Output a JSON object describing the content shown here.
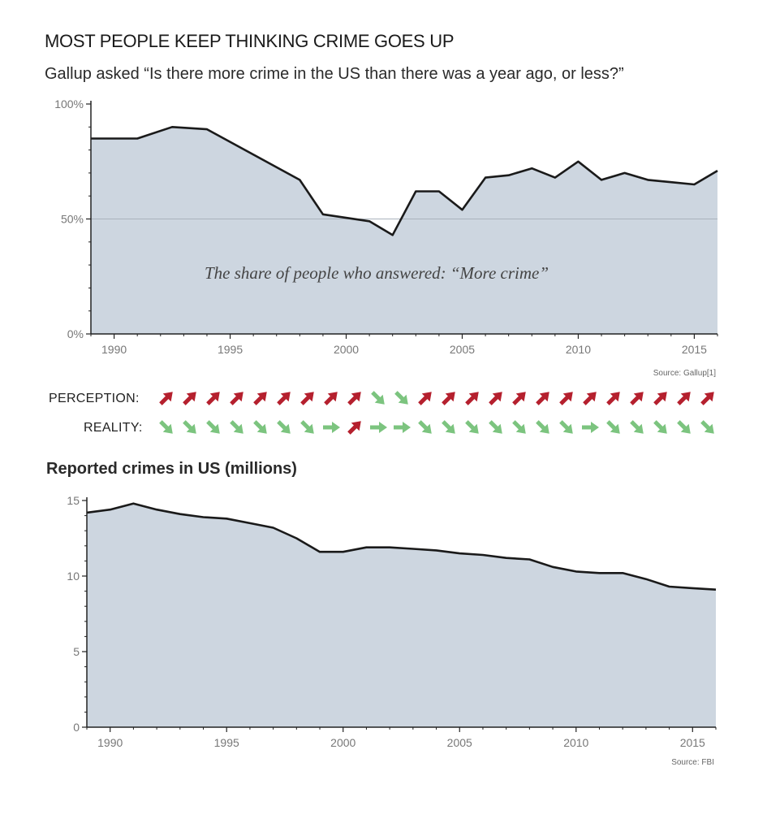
{
  "title": "MOST PEOPLE KEEP THINKING CRIME GOES UP",
  "subtitle": "Gallup asked “Is there more crime in the US than there was a year ago, or less?”",
  "colors": {
    "area_fill": "#cdd6e0",
    "line": "#1a1a1a",
    "up_arrow": "#b5202e",
    "down_arrow": "#7cc47f"
  },
  "chart_data": [
    {
      "type": "area",
      "annotation": "The share of people who answered: “More crime”",
      "source": "Source: Gallup[1]",
      "ylim": [
        0,
        100
      ],
      "yticks": [
        "0%",
        "50%",
        "100%"
      ],
      "xlim": [
        1989,
        2016
      ],
      "xticks": [
        "1990",
        "1995",
        "2000",
        "2005",
        "2010",
        "2015"
      ],
      "grid": "50% reference line",
      "series": [
        {
          "x": [
            1989,
            1991,
            1992.5,
            1994,
            1998,
            1999,
            2001,
            2002,
            2003,
            2004,
            2005,
            2006,
            2007,
            2008,
            2009,
            2010,
            2011,
            2012,
            2013,
            2014,
            2015,
            2016
          ],
          "y": [
            85,
            85,
            90,
            89,
            67,
            52,
            49,
            43,
            62,
            62,
            54,
            68,
            69,
            72,
            68,
            75,
            67,
            70,
            67,
            66,
            65,
            71
          ]
        }
      ]
    },
    {
      "type": "area",
      "title": "Reported crimes in US (millions)",
      "source": "Source: FBI",
      "ylim": [
        0,
        15
      ],
      "yticks": [
        "0",
        "5",
        "10",
        "15"
      ],
      "xlim": [
        1989,
        2016
      ],
      "xticks": [
        "1990",
        "1995",
        "2000",
        "2005",
        "2010",
        "2015"
      ],
      "series": [
        {
          "x": [
            1989,
            1990,
            1991,
            1992,
            1993,
            1994,
            1995,
            1996,
            1997,
            1998,
            1999,
            2000,
            2001,
            2002,
            2003,
            2004,
            2005,
            2006,
            2007,
            2008,
            2009,
            2010,
            2011,
            2012,
            2013,
            2014,
            2015,
            2016
          ],
          "y": [
            14.2,
            14.4,
            14.8,
            14.4,
            14.1,
            13.9,
            13.8,
            13.5,
            13.2,
            12.5,
            11.6,
            11.6,
            11.9,
            11.9,
            11.8,
            11.7,
            11.5,
            11.4,
            11.2,
            11.1,
            10.6,
            10.3,
            10.2,
            10.2,
            9.8,
            9.3,
            9.2,
            9.1
          ]
        }
      ]
    }
  ],
  "comparison": {
    "perception_label": "PERCEPTION:",
    "reality_label": "REALITY:",
    "perception": [
      "up",
      "up",
      "up",
      "up",
      "up",
      "up",
      "up",
      "up",
      "up",
      "down",
      "down",
      "up",
      "up",
      "up",
      "up",
      "up",
      "up",
      "up",
      "up",
      "up",
      "up",
      "up",
      "up",
      "up"
    ],
    "reality": [
      "down",
      "down",
      "down",
      "down",
      "down",
      "down",
      "down",
      "right",
      "up",
      "right",
      "right",
      "down",
      "down",
      "down",
      "down",
      "down",
      "down",
      "down",
      "right",
      "down",
      "down",
      "down",
      "down",
      "down"
    ]
  }
}
